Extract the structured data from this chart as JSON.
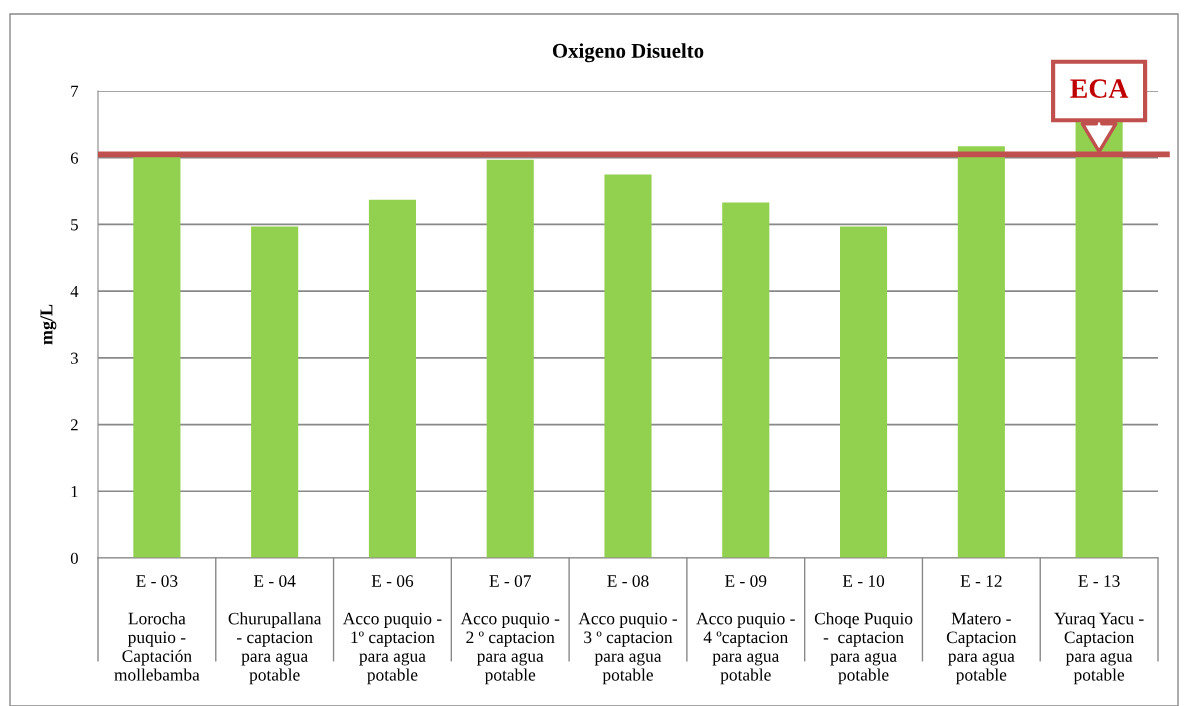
{
  "chart_data": {
    "type": "bar",
    "title": "Oxigeno Disuelto",
    "ylabel": "mg/L",
    "categories": [
      "E - 03\n\nLorocha\npuquio -\nCaptación\nmollebamba",
      "E - 04\n\nChurupallana\n- captacion\npara agua\npotable",
      "E - 06\n\nAcco puquio -\n1º captacion\npara agua\npotable",
      "E - 07\n\nAcco puquio -\n2 º captacion\npara agua\npotable",
      "E - 08\n\nAcco puquio -\n3 º captacion\npara agua\npotable",
      "E - 09\n\nAcco puquio -\n4 ºcaptacion\npara agua\npotable",
      "E - 10\n\nChoqe Puquio\n-  captacion\npara agua\npotable",
      "E - 12\n\nMatero -\nCaptacion\npara agua\npotable",
      "E - 13\n\nYuraq Yacu -\nCaptacion\npara agua\npotable"
    ],
    "values": [
      6.02,
      4.97,
      5.37,
      5.97,
      5.75,
      5.33,
      4.97,
      6.17,
      6.57
    ],
    "color": "#92d050",
    "ylim": [
      0,
      7
    ],
    "yticks": [
      0,
      1,
      2,
      3,
      4,
      5,
      6,
      7
    ],
    "grid": "y",
    "ref_lines": [
      {
        "axis": "y",
        "value": 6.05,
        "label": "ECA",
        "color": "#c0504d"
      }
    ]
  }
}
